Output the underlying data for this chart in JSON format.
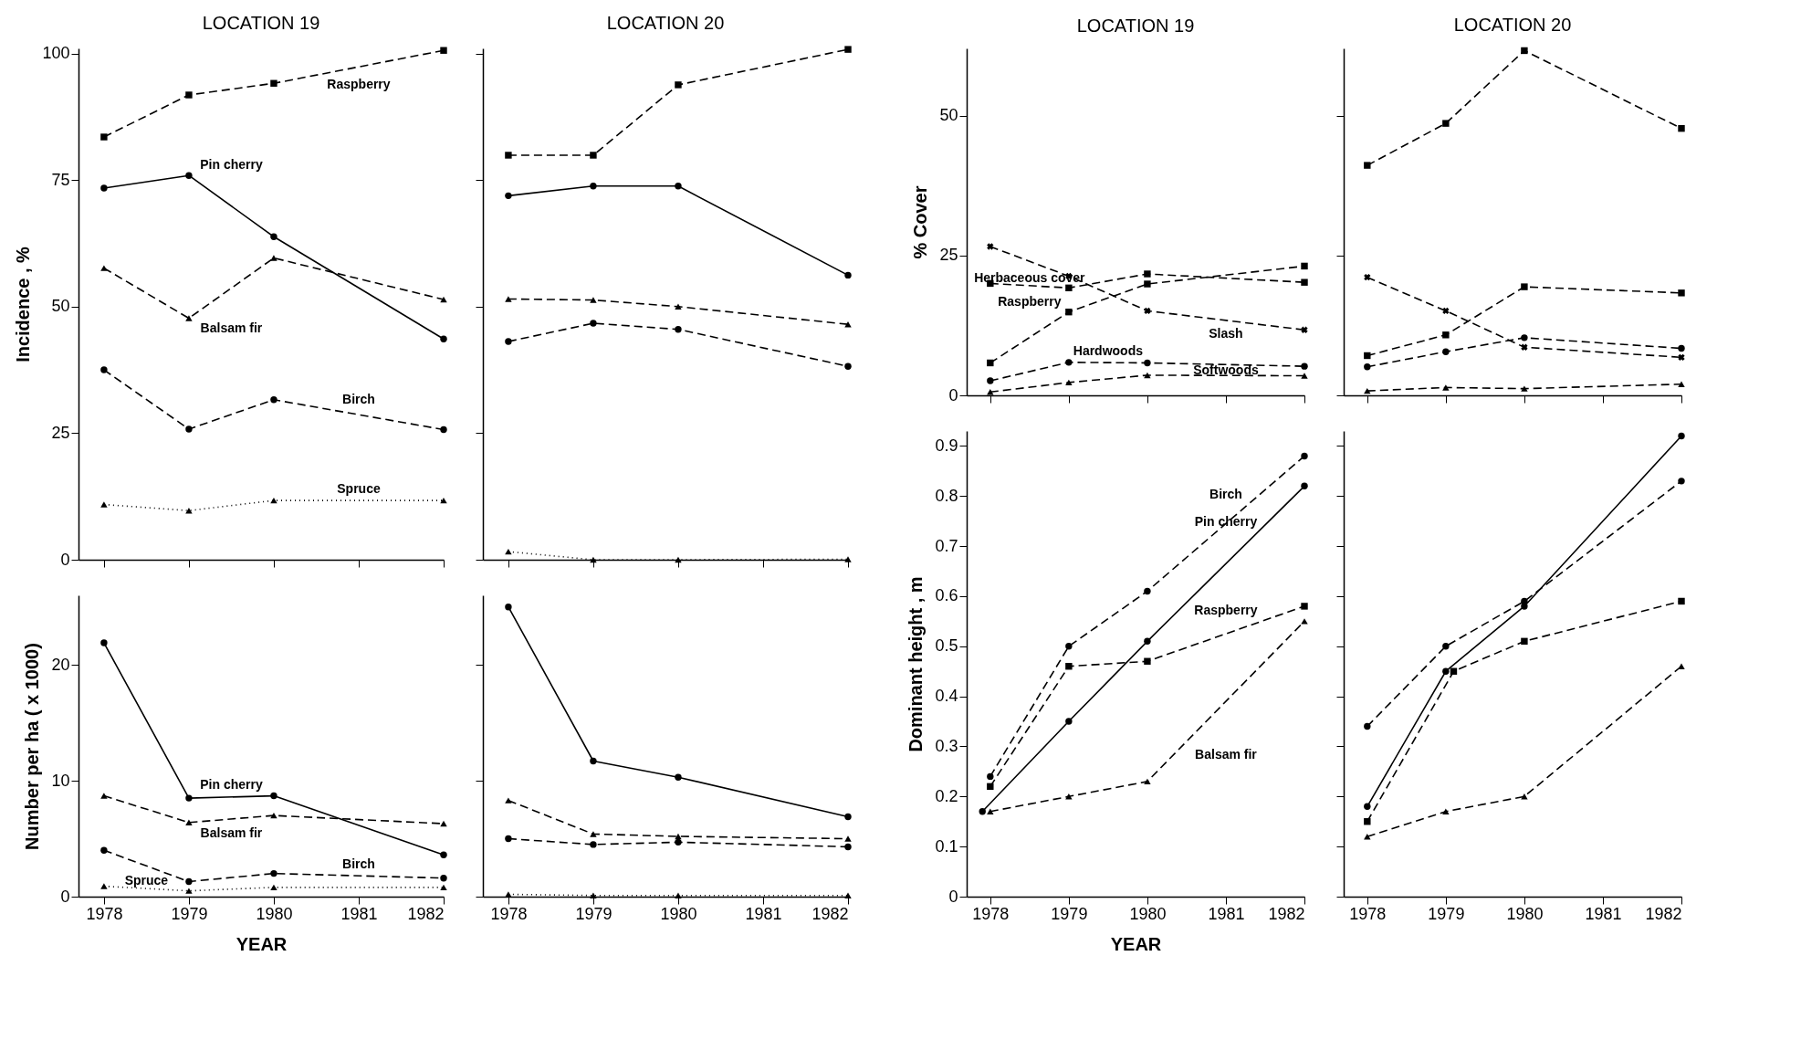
{
  "chart_data": [
    {
      "type": "line",
      "title": "LOCATION 19",
      "ylabel": "Incidence , %",
      "x": [
        1978,
        1979,
        1980,
        1982
      ],
      "xlim": [
        1977.7,
        1982
      ],
      "xticks": [
        1978,
        1979,
        1980,
        1981,
        1982
      ],
      "ylim": [
        0,
        101
      ],
      "yticks": [
        0,
        25,
        50,
        75,
        100
      ],
      "tick_labels": "y",
      "series": [
        {
          "name": "Raspberry",
          "color": "#000000",
          "marker": "square",
          "line_style": "dashed",
          "values": [
            83.5,
            91.8,
            94.1,
            100.6
          ]
        },
        {
          "name": "Pin cherry",
          "color": "#000000",
          "marker": "circle",
          "line_style": "solid",
          "values": [
            73.4,
            75.9,
            63.8,
            43.6
          ]
        },
        {
          "name": "Balsam fir",
          "color": "#000000",
          "marker": "triangle",
          "line_style": "dashed",
          "values": [
            57.6,
            47.7,
            59.6,
            51.4
          ]
        },
        {
          "name": "Birch",
          "color": "#000000",
          "marker": "circle",
          "line_style": "dashed",
          "values": [
            37.5,
            25.8,
            31.6,
            25.7
          ]
        },
        {
          "name": "Spruce",
          "color": "#000000",
          "marker": "triangle",
          "line_style": "dotted",
          "values": [
            10.9,
            9.7,
            11.7,
            11.7
          ]
        }
      ]
    },
    {
      "type": "line",
      "title": "LOCATION 20",
      "x": [
        1978,
        1979,
        1980,
        1982
      ],
      "xlim": [
        1977.7,
        1982
      ],
      "xticks": [
        1978,
        1979,
        1980,
        1981,
        1982
      ],
      "ylim": [
        0,
        101
      ],
      "yticks": [
        0,
        25,
        50,
        75,
        100
      ],
      "tick_labels": false,
      "series": [
        {
          "color": "#000000",
          "marker": "square",
          "line_style": "dashed",
          "values": [
            79.9,
            79.9,
            93.8,
            100.8
          ]
        },
        {
          "color": "#000000",
          "marker": "circle",
          "line_style": "solid",
          "values": [
            71.9,
            73.8,
            73.8,
            56.2
          ]
        },
        {
          "color": "#000000",
          "marker": "triangle",
          "line_style": "dashed",
          "values": [
            51.5,
            51.3,
            50,
            46.5
          ]
        },
        {
          "color": "#000000",
          "marker": "circle",
          "line_style": "dashed",
          "values": [
            43.1,
            46.7,
            45.5,
            38.2
          ]
        },
        {
          "color": "#000000",
          "marker": "triangle",
          "line_style": "dotted",
          "values": [
            1.6,
            0,
            0,
            0.1
          ]
        }
      ]
    },
    {
      "type": "line",
      "title": "LOCATION 19",
      "ylabel": "% Cover",
      "x": [
        1978,
        1979,
        1980,
        1982
      ],
      "xlim": [
        1977.7,
        1982
      ],
      "xticks": [
        1978,
        1979,
        1980,
        1981,
        1982
      ],
      "ylim": [
        0,
        62
      ],
      "yticks": [
        0,
        25,
        50
      ],
      "tick_labels": "y",
      "series": [
        {
          "name": "Raspberry",
          "color": "#000000",
          "marker": "square",
          "line_style": "dashed",
          "values": [
            5.8,
            14.9,
            19.9,
            23.1
          ]
        },
        {
          "name": "Herbaceous cover",
          "color": "#000000",
          "marker": "square",
          "line_style": "dashed",
          "values": [
            20,
            19.2,
            21.7,
            20.2
          ]
        },
        {
          "name": "Slash",
          "color": "#000000",
          "marker": "cross",
          "line_style": "dashed",
          "values": [
            26.6,
            21.3,
            15.1,
            11.7
          ]
        },
        {
          "name": "Hardwoods",
          "color": "#000000",
          "marker": "circle",
          "line_style": "dashed",
          "values": [
            2.6,
            5.9,
            5.8,
            5.2
          ]
        },
        {
          "name": "Softwoods",
          "color": "#000000",
          "marker": "triangle",
          "line_style": "dashed",
          "values": [
            0.6,
            2.3,
            3.6,
            3.5
          ]
        }
      ]
    },
    {
      "type": "line",
      "title": "LOCATION 20",
      "x": [
        1978,
        1979,
        1980,
        1982
      ],
      "xlim": [
        1977.7,
        1982
      ],
      "xticks": [
        1978,
        1979,
        1980,
        1981,
        1982
      ],
      "ylim": [
        0,
        62
      ],
      "yticks": [
        0,
        25,
        50
      ],
      "tick_labels": false,
      "series": [
        {
          "color": "#000000",
          "marker": "square",
          "line_style": "dashed",
          "values": [
            7.1,
            10.8,
            19.4,
            18.3
          ]
        },
        {
          "color": "#000000",
          "marker": "square",
          "line_style": "dashed",
          "values": [
            41.1,
            48.6,
            61.6,
            47.7
          ]
        },
        {
          "color": "#000000",
          "marker": "cross",
          "line_style": "dashed",
          "values": [
            21.1,
            15.1,
            8.6,
            6.8
          ]
        },
        {
          "color": "#000000",
          "marker": "circle",
          "line_style": "dashed",
          "values": [
            5.1,
            7.8,
            10.3,
            8.4
          ]
        },
        {
          "color": "#000000",
          "marker": "triangle",
          "line_style": "dashed",
          "values": [
            0.8,
            1.4,
            1.2,
            2.0
          ]
        }
      ]
    },
    {
      "type": "line",
      "ylabel": "Number per ha ( x 1000)",
      "xlabel": "YEAR",
      "x": [
        1978,
        1979,
        1980,
        1982
      ],
      "xlim": [
        1977.7,
        1982
      ],
      "xticks": [
        1978,
        1979,
        1980,
        1981,
        1982
      ],
      "ylim": [
        0,
        26
      ],
      "yticks": [
        0,
        10,
        20
      ],
      "series": [
        {
          "name": "Pin cherry",
          "color": "#000000",
          "marker": "circle",
          "line_style": "solid",
          "values": [
            21.9,
            8.5,
            8.7,
            3.6
          ]
        },
        {
          "name": "Balsam fir",
          "color": "#000000",
          "marker": "triangle",
          "line_style": "dashed",
          "values": [
            8.7,
            6.4,
            7.0,
            6.3
          ]
        },
        {
          "name": "Birch",
          "color": "#000000",
          "marker": "circle",
          "line_style": "dashed",
          "values": [
            4.0,
            1.3,
            2.0,
            1.6
          ]
        },
        {
          "name": "Spruce",
          "color": "#000000",
          "marker": "triangle",
          "line_style": "dotted",
          "values": [
            0.9,
            0.5,
            0.8,
            0.8
          ]
        }
      ]
    },
    {
      "type": "line",
      "x": [
        1978,
        1979,
        1980,
        1982
      ],
      "xlim": [
        1977.7,
        1982
      ],
      "xticks": [
        1978,
        1979,
        1980,
        1981,
        1982
      ],
      "ylim": [
        0,
        26
      ],
      "yticks": [
        0,
        10,
        20
      ],
      "tick_labels": "x",
      "series": [
        {
          "color": "#000000",
          "marker": "circle",
          "line_style": "solid",
          "values": [
            25.0,
            11.7,
            10.3,
            6.9
          ]
        },
        {
          "color": "#000000",
          "marker": "triangle",
          "line_style": "dashed",
          "values": [
            8.3,
            5.4,
            5.2,
            5.0
          ]
        },
        {
          "color": "#000000",
          "marker": "circle",
          "line_style": "dashed",
          "values": [
            5.0,
            4.5,
            4.7,
            4.3
          ]
        },
        {
          "color": "#000000",
          "marker": "triangle",
          "line_style": "dotted",
          "values": [
            0.2,
            0.1,
            0.1,
            0.1
          ]
        }
      ]
    },
    {
      "type": "line",
      "ylabel": "Dominant height , m",
      "xlabel": "YEAR",
      "x": [
        1978,
        1979,
        1980,
        1982
      ],
      "xlim": [
        1977.7,
        1982
      ],
      "xticks": [
        1978,
        1979,
        1980,
        1981,
        1982
      ],
      "ylim": [
        0,
        0.93
      ],
      "yticks": [
        0,
        0.1,
        0.2,
        0.3,
        0.4,
        0.5,
        0.6,
        0.7,
        0.8,
        0.9
      ],
      "series": [
        {
          "name": "Birch",
          "color": "#000000",
          "marker": "circle",
          "line_style": "dashed",
          "values": [
            0.24,
            0.5,
            0.61,
            0.88
          ]
        },
        {
          "name": "Pin cherry",
          "color": "#000000",
          "marker": "circle",
          "line_style": "solid",
          "x": [
            1977.9,
            1979,
            1980,
            1982
          ],
          "values": [
            0.17,
            0.35,
            0.51,
            0.82
          ]
        },
        {
          "name": "Raspberry",
          "color": "#000000",
          "marker": "square",
          "line_style": "dashed",
          "values": [
            0.22,
            0.46,
            0.47,
            0.58
          ]
        },
        {
          "name": "Balsam fir",
          "color": "#000000",
          "marker": "triangle",
          "line_style": "dashed",
          "values": [
            0.17,
            0.2,
            0.23,
            0.55
          ]
        }
      ]
    },
    {
      "type": "line",
      "x": [
        1978,
        1979,
        1980,
        1982
      ],
      "xlim": [
        1977.7,
        1982
      ],
      "xticks": [
        1978,
        1979,
        1980,
        1981,
        1982
      ],
      "ylim": [
        0,
        0.93
      ],
      "yticks": [
        0,
        0.1,
        0.2,
        0.3,
        0.4,
        0.5,
        0.6,
        0.7,
        0.8,
        0.9
      ],
      "tick_labels": "x",
      "series": [
        {
          "color": "#000000",
          "marker": "circle",
          "line_style": "dashed",
          "values": [
            0.34,
            0.5,
            0.59,
            0.83
          ]
        },
        {
          "color": "#000000",
          "marker": "circle",
          "line_style": "solid",
          "values": [
            0.18,
            0.45,
            0.58,
            0.92
          ]
        },
        {
          "color": "#000000",
          "marker": "square",
          "line_style": "dashed",
          "x": [
            1978,
            1979.1,
            1980,
            1982
          ],
          "values": [
            0.15,
            0.45,
            0.51,
            0.59
          ]
        },
        {
          "color": "#000000",
          "marker": "triangle",
          "line_style": "dashed",
          "values": [
            0.12,
            0.17,
            0.2,
            0.46
          ]
        }
      ]
    }
  ]
}
